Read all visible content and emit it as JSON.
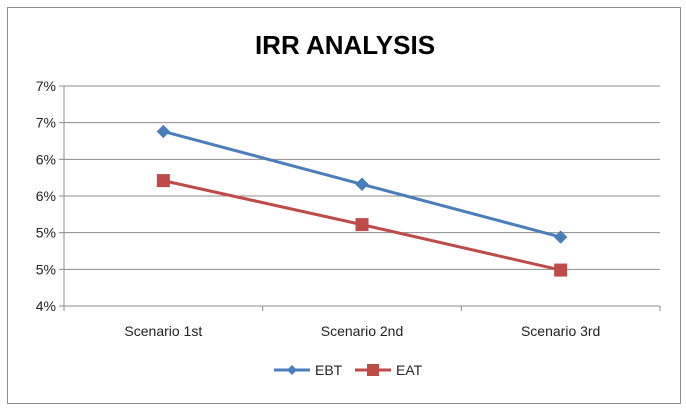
{
  "chart_data": {
    "type": "line",
    "title": "IRR ANALYSIS",
    "xlabel": "",
    "ylabel": "",
    "categories": [
      "Scenario 1st",
      "Scenario 2nd",
      "Scenario 3rd"
    ],
    "y_tick_labels": [
      "4%",
      "5%",
      "5%",
      "6%",
      "6%",
      "7%",
      "7%"
    ],
    "ylim": [
      0.04,
      0.07
    ],
    "grid": true,
    "legend_position": "bottom",
    "series": [
      {
        "name": "EBT",
        "values": [
          0.0638,
          0.0566,
          0.0494
        ],
        "color": "#4a7ebb",
        "marker": "diamond"
      },
      {
        "name": "EAT",
        "values": [
          0.0571,
          0.0511,
          0.0449
        ],
        "color": "#be4b48",
        "marker": "square"
      }
    ]
  }
}
